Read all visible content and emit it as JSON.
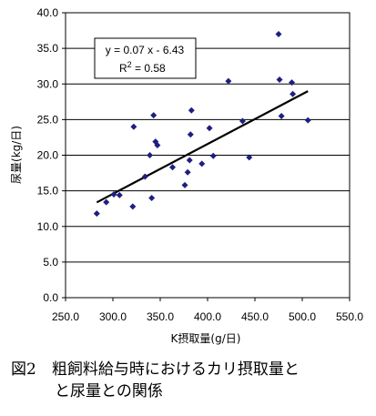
{
  "chart_data": {
    "type": "scatter",
    "xlabel": "K摂取量(g/日)",
    "ylabel": "尿量(kg/日)",
    "xlim": [
      250,
      550
    ],
    "ylim": [
      0,
      40
    ],
    "x_ticks": [
      "250.0",
      "300.0",
      "350.0",
      "400.0",
      "450.0",
      "500.0",
      "550.0"
    ],
    "y_ticks": [
      "0.0",
      "5.0",
      "10.0",
      "15.0",
      "20.0",
      "25.0",
      "30.0",
      "35.0",
      "40.0"
    ],
    "grid": true,
    "marker_color": "#1f1f80",
    "points": [
      [
        283,
        11.8
      ],
      [
        293,
        13.4
      ],
      [
        301,
        14.5
      ],
      [
        307,
        14.4
      ],
      [
        321,
        12.8
      ],
      [
        322,
        24.0
      ],
      [
        334,
        17.0
      ],
      [
        339,
        20.0
      ],
      [
        341,
        14.0
      ],
      [
        343,
        25.6
      ],
      [
        345,
        21.9
      ],
      [
        347,
        21.4
      ],
      [
        363,
        18.3
      ],
      [
        376,
        15.8
      ],
      [
        379,
        17.6
      ],
      [
        381,
        19.3
      ],
      [
        382,
        22.9
      ],
      [
        383,
        26.3
      ],
      [
        394,
        18.8
      ],
      [
        402,
        23.8
      ],
      [
        406,
        19.9
      ],
      [
        422,
        30.4
      ],
      [
        437,
        24.8
      ],
      [
        444,
        19.7
      ],
      [
        475,
        37.0
      ],
      [
        476,
        30.6
      ],
      [
        478,
        25.5
      ],
      [
        489,
        30.2
      ],
      [
        490,
        28.6
      ],
      [
        506,
        24.9
      ]
    ],
    "trendline": {
      "slope": 0.07,
      "intercept": -6.43,
      "x_range": [
        283,
        506
      ],
      "equation": "y = 0.07 x - 6.43",
      "r2_prefix": "R",
      "r2_sup": "2",
      "r2_value": " = 0.58"
    }
  },
  "caption": {
    "line1": "図2　粗飼料給与時におけるカリ摂取量と",
    "line2": "と尿量との関係"
  }
}
